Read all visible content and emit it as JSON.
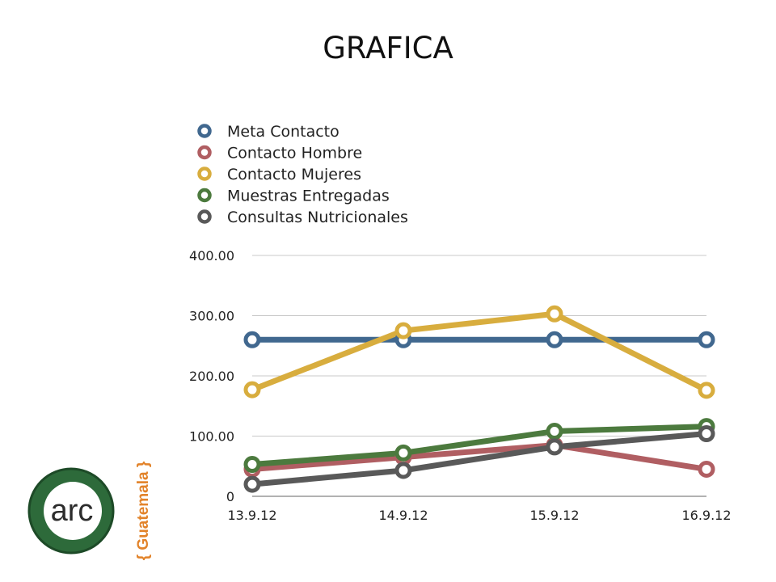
{
  "slide": {
    "title": "GRAFICA"
  },
  "chart_data": {
    "type": "line",
    "categories": [
      "13.9.12",
      "14.9.12",
      "15.9.12",
      "16.9.12"
    ],
    "ylim": [
      0,
      400
    ],
    "yticks": [
      0,
      100,
      200,
      300,
      400
    ],
    "ytick_labels": [
      "0",
      "100.00",
      "200.00",
      "300.00",
      "400.00"
    ],
    "grid": true,
    "legend_position": "top-left",
    "series": [
      {
        "name": "Meta Contacto",
        "color": "#41688f",
        "values": [
          260,
          260,
          260,
          260
        ]
      },
      {
        "name": "Contacto Hombre",
        "color": "#b05e62",
        "values": [
          45,
          65,
          85,
          45
        ]
      },
      {
        "name": "Contacto Mujeres",
        "color": "#d8ad3e",
        "values": [
          177,
          275,
          303,
          176
        ]
      },
      {
        "name": "Muestras Entregadas",
        "color": "#4c7a3e",
        "values": [
          53,
          72,
          108,
          116
        ]
      },
      {
        "name": "Consultas Nutricionales",
        "color": "#595959",
        "values": [
          20,
          43,
          82,
          104
        ]
      }
    ]
  },
  "logo": {
    "text": "arc",
    "country": "{ Guatemala }",
    "ring_color": "#2d6a3a",
    "accent_color": "#e2832a"
  }
}
